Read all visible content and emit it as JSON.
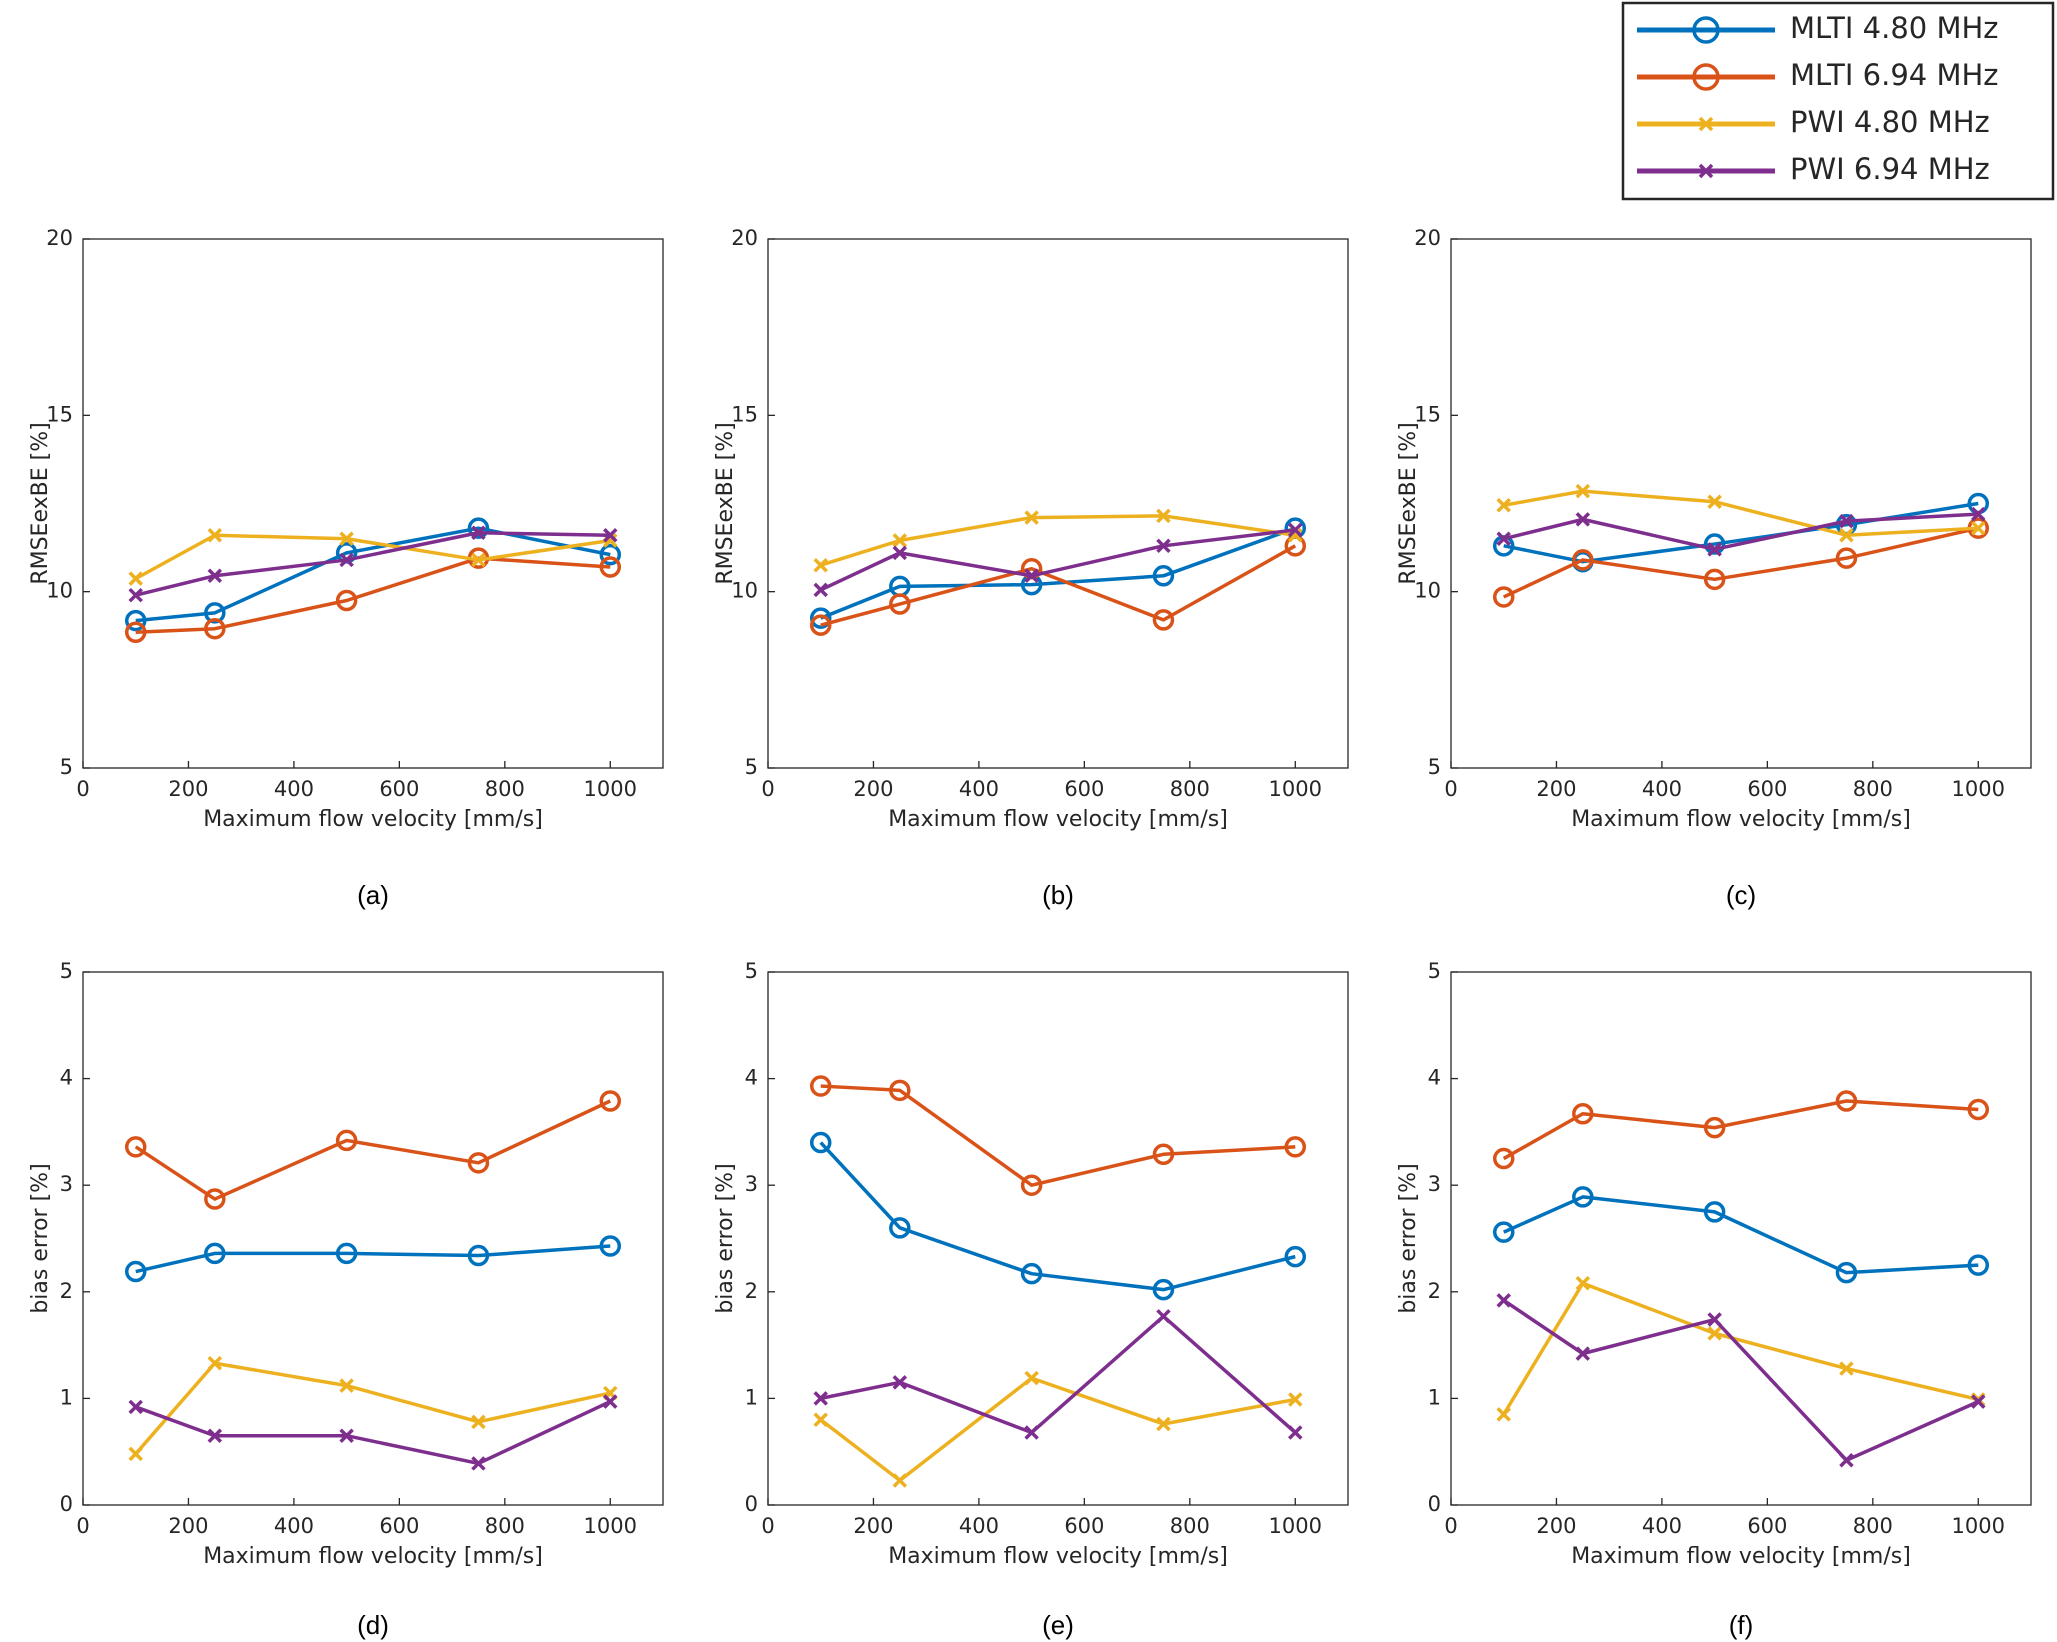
{
  "chart_data": [
    {
      "type": "line",
      "subtitle": "(a)",
      "ylabel": "RMSEexBE [%]",
      "xlabel": "Maximum flow velocity [mm/s]",
      "x": [
        100,
        250,
        500,
        750,
        1000
      ],
      "xlim": [
        0,
        1100
      ],
      "xticks": [
        0,
        200,
        400,
        600,
        800,
        1000
      ],
      "ylim": [
        5,
        20
      ],
      "yticks": [
        5,
        10,
        15,
        20
      ],
      "series": [
        {
          "name": "MLTI 4.80 MHz",
          "color": "#0072bd",
          "marker": "o",
          "values": [
            9.18,
            9.4,
            11.1,
            11.8,
            11.05
          ]
        },
        {
          "name": "MLTI 6.94 MHz",
          "color": "#d95319",
          "marker": "o",
          "values": [
            8.85,
            8.95,
            9.75,
            10.95,
            10.7
          ]
        },
        {
          "name": "PWI 4.80 MHz",
          "color": "#edb120",
          "marker": "x",
          "values": [
            10.37,
            11.6,
            11.5,
            10.9,
            11.45
          ]
        },
        {
          "name": "PWI 6.94 MHz",
          "color": "#7e2f8e",
          "marker": "x",
          "values": [
            9.9,
            10.45,
            10.9,
            11.67,
            11.6
          ]
        }
      ]
    },
    {
      "type": "line",
      "subtitle": "(b)",
      "ylabel": "RMSEexBE [%]",
      "xlabel": "Maximum flow velocity [mm/s]",
      "x": [
        100,
        250,
        500,
        750,
        1000
      ],
      "xlim": [
        0,
        1100
      ],
      "xticks": [
        0,
        200,
        400,
        600,
        800,
        1000
      ],
      "ylim": [
        5,
        20
      ],
      "yticks": [
        5,
        10,
        15,
        20
      ],
      "series": [
        {
          "color": "#0072bd",
          "marker": "o",
          "values": [
            9.25,
            10.15,
            10.2,
            10.45,
            11.8
          ]
        },
        {
          "color": "#d95319",
          "marker": "o",
          "values": [
            9.05,
            9.65,
            10.65,
            9.2,
            11.3
          ]
        },
        {
          "color": "#edb120",
          "marker": "x",
          "values": [
            10.75,
            11.45,
            12.1,
            12.15,
            11.6
          ]
        },
        {
          "color": "#7e2f8e",
          "marker": "x",
          "values": [
            10.05,
            11.1,
            10.45,
            11.3,
            11.75
          ]
        }
      ]
    },
    {
      "type": "line",
      "subtitle": "(c)",
      "ylabel": "RMSEexBE [%]",
      "xlabel": "Maximum flow velocity [mm/s]",
      "x": [
        100,
        250,
        500,
        750,
        1000
      ],
      "xlim": [
        0,
        1100
      ],
      "xticks": [
        0,
        200,
        400,
        600,
        800,
        1000
      ],
      "ylim": [
        5,
        20
      ],
      "yticks": [
        5,
        10,
        15,
        20
      ],
      "series": [
        {
          "color": "#0072bd",
          "marker": "o",
          "values": [
            11.3,
            10.85,
            11.35,
            11.9,
            12.5
          ]
        },
        {
          "color": "#d95319",
          "marker": "o",
          "values": [
            9.85,
            10.9,
            10.35,
            10.95,
            11.8
          ]
        },
        {
          "color": "#edb120",
          "marker": "x",
          "values": [
            12.45,
            12.85,
            12.55,
            11.6,
            11.8
          ]
        },
        {
          "color": "#7e2f8e",
          "marker": "x",
          "values": [
            11.5,
            12.05,
            11.2,
            12.0,
            12.2
          ]
        }
      ]
    },
    {
      "type": "line",
      "subtitle": "(d)",
      "ylabel": "bias error [%]",
      "xlabel": "Maximum flow velocity [mm/s]",
      "x": [
        100,
        250,
        500,
        750,
        1000
      ],
      "xlim": [
        0,
        1100
      ],
      "xticks": [
        0,
        200,
        400,
        600,
        800,
        1000
      ],
      "ylim": [
        0,
        5
      ],
      "yticks": [
        0,
        1,
        2,
        3,
        4,
        5
      ],
      "series": [
        {
          "color": "#0072bd",
          "marker": "o",
          "values": [
            2.19,
            2.36,
            2.36,
            2.34,
            2.43
          ]
        },
        {
          "color": "#d95319",
          "marker": "o",
          "values": [
            3.36,
            2.87,
            3.42,
            3.21,
            3.79
          ]
        },
        {
          "color": "#edb120",
          "marker": "x",
          "values": [
            0.48,
            1.33,
            1.12,
            0.78,
            1.05
          ]
        },
        {
          "color": "#7e2f8e",
          "marker": "x",
          "values": [
            0.92,
            0.65,
            0.65,
            0.39,
            0.97
          ]
        }
      ]
    },
    {
      "type": "line",
      "subtitle": "(e)",
      "ylabel": "bias error [%]",
      "xlabel": "Maximum flow velocity [mm/s]",
      "x": [
        100,
        250,
        500,
        750,
        1000
      ],
      "xlim": [
        0,
        1100
      ],
      "xticks": [
        0,
        200,
        400,
        600,
        800,
        1000
      ],
      "ylim": [
        0,
        5
      ],
      "yticks": [
        0,
        1,
        2,
        3,
        4,
        5
      ],
      "series": [
        {
          "color": "#0072bd",
          "marker": "o",
          "values": [
            3.4,
            2.6,
            2.17,
            2.02,
            2.33
          ]
        },
        {
          "color": "#d95319",
          "marker": "o",
          "values": [
            3.93,
            3.89,
            3.0,
            3.29,
            3.36
          ]
        },
        {
          "color": "#edb120",
          "marker": "x",
          "values": [
            0.8,
            0.23,
            1.19,
            0.76,
            0.99
          ]
        },
        {
          "color": "#7e2f8e",
          "marker": "x",
          "values": [
            1.0,
            1.15,
            0.68,
            1.77,
            0.68
          ]
        }
      ]
    },
    {
      "type": "line",
      "subtitle": "(f)",
      "ylabel": "bias error [%]",
      "xlabel": "Maximum flow velocity [mm/s]",
      "x": [
        100,
        250,
        500,
        750,
        1000
      ],
      "xlim": [
        0,
        1100
      ],
      "xticks": [
        0,
        200,
        400,
        600,
        800,
        1000
      ],
      "ylim": [
        0,
        5
      ],
      "yticks": [
        0,
        1,
        2,
        3,
        4,
        5
      ],
      "series": [
        {
          "color": "#0072bd",
          "marker": "o",
          "values": [
            2.56,
            2.89,
            2.75,
            2.18,
            2.25
          ]
        },
        {
          "color": "#d95319",
          "marker": "o",
          "values": [
            3.25,
            3.67,
            3.54,
            3.79,
            3.71
          ]
        },
        {
          "color": "#edb120",
          "marker": "x",
          "values": [
            0.85,
            2.08,
            1.61,
            1.28,
            0.99
          ]
        },
        {
          "color": "#7e2f8e",
          "marker": "x",
          "values": [
            1.92,
            1.42,
            1.74,
            0.42,
            0.97
          ]
        }
      ]
    }
  ]
}
